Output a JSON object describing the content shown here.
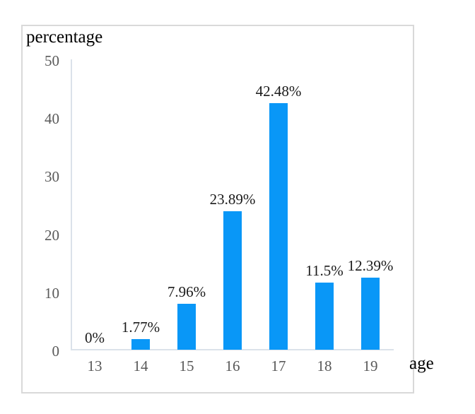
{
  "chart_data": {
    "type": "bar",
    "title": "",
    "ylabel": "percentage",
    "xlabel": "age",
    "categories": [
      "13",
      "14",
      "15",
      "16",
      "17",
      "18",
      "19"
    ],
    "values": [
      0,
      1.77,
      7.96,
      23.89,
      42.48,
      11.5,
      12.39
    ],
    "value_labels": [
      "0%",
      "1.77%",
      "7.96%",
      "23.89%",
      "42.48%",
      "11.5%",
      "12.39%"
    ],
    "y_ticks": [
      0,
      10,
      20,
      30,
      40,
      50
    ],
    "ylim": [
      0,
      50
    ],
    "grid": false,
    "legend": null,
    "colors": {
      "bar": "#0997f7",
      "axis_line": "#dbe2ea",
      "tick_label": "#595959",
      "value_label": "#1a1a1a",
      "axis_title": "#000000",
      "frame_border": "#d9d9d9",
      "background": "#ffffff"
    }
  }
}
